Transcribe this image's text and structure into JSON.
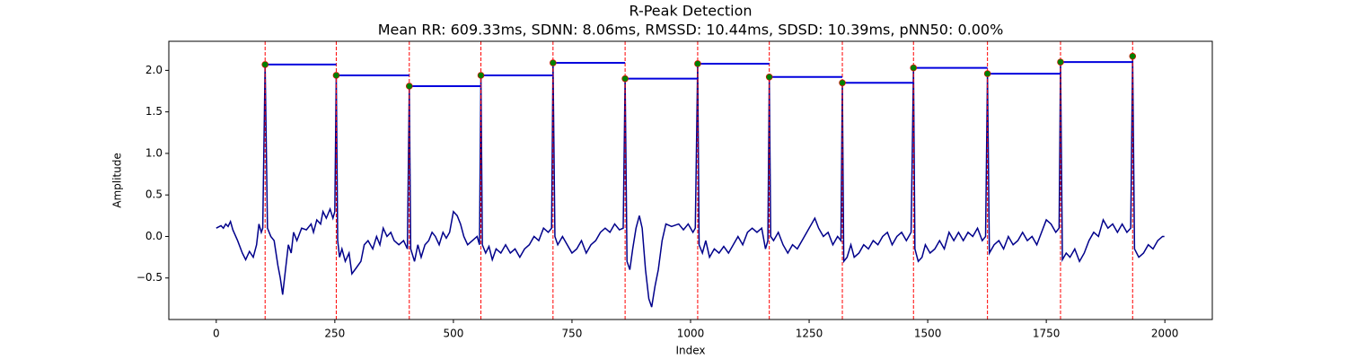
{
  "chart_data": {
    "type": "line",
    "title": "R-Peak Detection",
    "subtitle": "Mean RR: 609.33ms, SDNN: 8.06ms, RMSSD: 10.44ms, SDSD: 10.39ms, pNN50: 0.00%",
    "xlabel": "Index",
    "ylabel": "Amplitude",
    "xlim": [
      -100,
      2100
    ],
    "ylim": [
      -1.0,
      2.35
    ],
    "xticks": [
      0,
      250,
      500,
      750,
      1000,
      1250,
      1500,
      1750,
      2000
    ],
    "yticks": [
      {
        "value": -0.5,
        "label": "−0.5"
      },
      {
        "value": 0,
        "label": "0.0"
      },
      0.5,
      {
        "value": 1,
        "label": "1.0"
      },
      1.5,
      {
        "value": 2,
        "label": "2.0"
      }
    ],
    "color": "#00008b",
    "x": [
      0,
      10,
      15,
      20,
      25,
      30,
      35,
      45,
      55,
      62,
      70,
      78,
      85,
      90,
      95,
      98,
      103,
      108,
      115,
      122,
      130,
      135,
      140,
      145,
      152,
      158,
      163,
      170,
      180,
      190,
      200,
      205,
      212,
      220,
      225,
      232,
      240,
      246,
      250,
      253,
      256,
      260,
      265,
      272,
      280,
      286,
      295,
      305,
      312,
      320,
      330,
      338,
      345,
      352,
      360,
      368,
      375,
      385,
      395,
      403,
      407,
      410,
      418,
      425,
      432,
      440,
      448,
      455,
      462,
      470,
      478,
      485,
      492,
      500,
      508,
      515,
      522,
      530,
      540,
      550,
      555,
      558,
      561,
      568,
      575,
      582,
      590,
      600,
      610,
      620,
      630,
      640,
      650,
      660,
      670,
      680,
      690,
      700,
      707,
      710,
      714,
      720,
      730,
      740,
      750,
      760,
      770,
      780,
      790,
      800,
      810,
      820,
      830,
      840,
      850,
      858,
      862,
      866,
      872,
      878,
      885,
      892,
      898,
      905,
      912,
      918,
      925,
      932,
      940,
      948,
      960,
      975,
      985,
      995,
      1005,
      1010,
      1015,
      1018,
      1025,
      1032,
      1040,
      1050,
      1060,
      1070,
      1080,
      1090,
      1100,
      1110,
      1120,
      1130,
      1140,
      1150,
      1158,
      1163,
      1166,
      1169,
      1175,
      1185,
      1195,
      1205,
      1215,
      1225,
      1235,
      1245,
      1255,
      1262,
      1270,
      1280,
      1290,
      1300,
      1310,
      1317,
      1320,
      1323,
      1330,
      1338,
      1345,
      1355,
      1365,
      1375,
      1385,
      1395,
      1405,
      1415,
      1425,
      1435,
      1445,
      1455,
      1465,
      1470,
      1473,
      1480,
      1488,
      1495,
      1505,
      1515,
      1525,
      1535,
      1545,
      1555,
      1565,
      1575,
      1585,
      1595,
      1605,
      1615,
      1622,
      1626,
      1630,
      1640,
      1650,
      1660,
      1670,
      1680,
      1690,
      1700,
      1710,
      1720,
      1730,
      1740,
      1750,
      1760,
      1770,
      1777,
      1780,
      1784,
      1792,
      1800,
      1810,
      1820,
      1830,
      1840,
      1850,
      1860,
      1870,
      1880,
      1890,
      1900,
      1910,
      1920,
      1928,
      1932,
      1936,
      1945,
      1955,
      1965,
      1975,
      1985,
      1995,
      1999
    ],
    "values": [
      0.1,
      0.13,
      0.1,
      0.15,
      0.12,
      0.18,
      0.08,
      -0.05,
      -0.2,
      -0.28,
      -0.18,
      -0.25,
      -0.1,
      0.15,
      0.05,
      0.1,
      2.07,
      0.1,
      0.0,
      -0.05,
      -0.35,
      -0.5,
      -0.7,
      -0.45,
      -0.1,
      -0.2,
      0.05,
      -0.05,
      0.1,
      0.08,
      0.15,
      0.05,
      0.2,
      0.15,
      0.3,
      0.22,
      0.33,
      0.22,
      0.3,
      1.94,
      -0.05,
      -0.25,
      -0.15,
      -0.3,
      -0.2,
      -0.45,
      -0.38,
      -0.3,
      -0.1,
      -0.05,
      -0.15,
      0.0,
      -0.1,
      0.1,
      0.0,
      0.05,
      -0.05,
      -0.1,
      -0.05,
      -0.15,
      1.81,
      -0.15,
      -0.3,
      -0.1,
      -0.25,
      -0.1,
      -0.05,
      0.05,
      0.0,
      -0.1,
      0.05,
      -0.02,
      0.05,
      0.3,
      0.25,
      0.15,
      0.0,
      -0.1,
      -0.05,
      0.0,
      -0.1,
      1.94,
      -0.1,
      -0.2,
      -0.12,
      -0.28,
      -0.15,
      -0.2,
      -0.1,
      -0.2,
      -0.15,
      -0.25,
      -0.15,
      -0.1,
      0.0,
      -0.05,
      0.1,
      0.05,
      0.1,
      2.09,
      0.0,
      -0.1,
      0.0,
      -0.1,
      -0.2,
      -0.15,
      -0.05,
      -0.2,
      -0.1,
      -0.05,
      0.05,
      0.1,
      0.05,
      0.15,
      0.08,
      0.1,
      1.9,
      -0.3,
      -0.4,
      -0.15,
      0.1,
      0.25,
      0.1,
      -0.4,
      -0.75,
      -0.85,
      -0.6,
      -0.4,
      -0.05,
      0.15,
      0.12,
      0.15,
      0.08,
      0.15,
      0.05,
      0.1,
      2.08,
      -0.1,
      -0.2,
      -0.05,
      -0.25,
      -0.15,
      -0.2,
      -0.12,
      -0.2,
      -0.1,
      0.0,
      -0.1,
      0.05,
      0.1,
      0.05,
      0.1,
      -0.15,
      -0.05,
      1.92,
      0.0,
      -0.05,
      0.05,
      -0.1,
      -0.2,
      -0.1,
      -0.15,
      -0.05,
      0.05,
      0.15,
      0.22,
      0.1,
      0.0,
      0.05,
      -0.1,
      0.0,
      -0.05,
      1.85,
      -0.3,
      -0.25,
      -0.1,
      -0.25,
      -0.2,
      -0.1,
      -0.15,
      -0.05,
      -0.1,
      0.0,
      0.05,
      -0.1,
      0.0,
      0.05,
      -0.05,
      0.05,
      2.03,
      -0.15,
      -0.3,
      -0.25,
      -0.1,
      -0.2,
      -0.15,
      -0.05,
      -0.15,
      0.05,
      -0.05,
      0.05,
      -0.05,
      0.05,
      0.0,
      0.1,
      -0.05,
      0.0,
      1.96,
      -0.2,
      -0.1,
      -0.05,
      -0.15,
      0.0,
      -0.1,
      -0.05,
      0.05,
      -0.05,
      0.0,
      -0.1,
      0.05,
      0.2,
      0.15,
      0.05,
      0.1,
      2.1,
      -0.28,
      -0.2,
      -0.25,
      -0.15,
      -0.3,
      -0.2,
      -0.05,
      0.05,
      0.0,
      0.2,
      0.1,
      0.15,
      0.05,
      0.15,
      0.05,
      0.1,
      2.17,
      -0.15,
      -0.25,
      -0.2,
      -0.1,
      -0.15,
      -0.05,
      0.0,
      0.0
    ],
    "peaks": {
      "x": [
        103,
        253,
        407,
        558,
        710,
        862,
        1015,
        1166,
        1320,
        1470,
        1626,
        1780,
        1932
      ],
      "values": [
        2.07,
        1.94,
        1.81,
        1.94,
        2.09,
        1.9,
        2.08,
        1.92,
        1.85,
        2.03,
        1.96,
        2.1,
        2.17
      ],
      "color": "green",
      "line_color": "red",
      "rr_color": "#0000dd"
    }
  }
}
